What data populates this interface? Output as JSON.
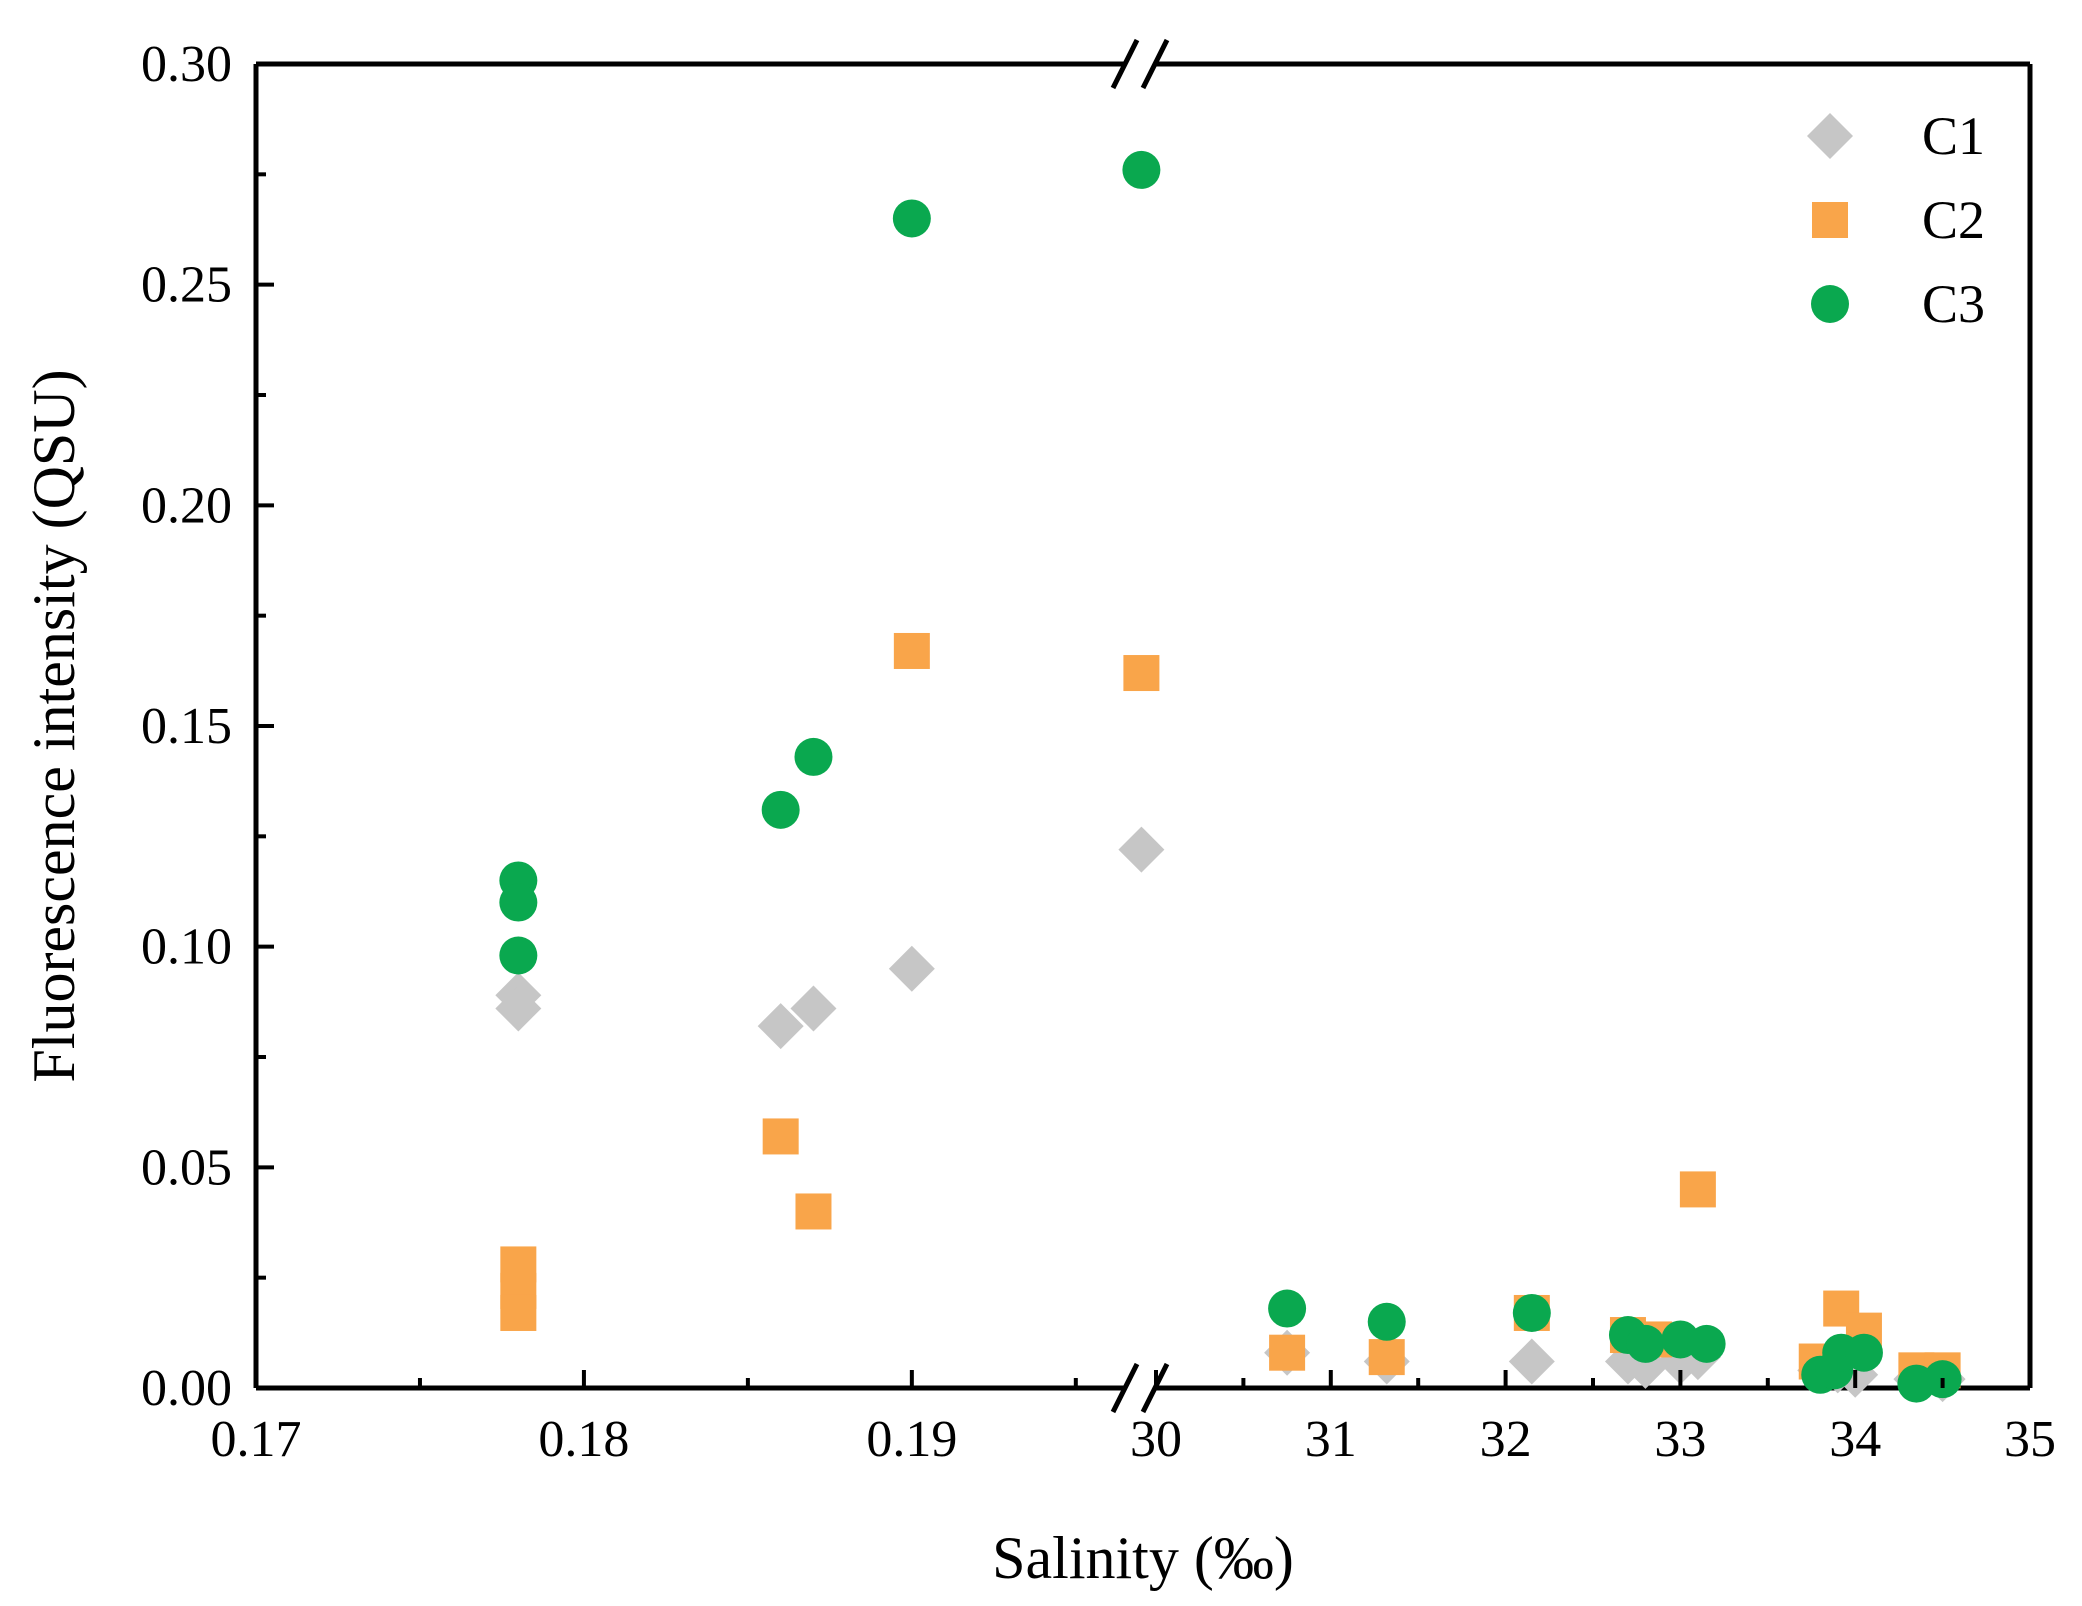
{
  "chart_data": {
    "type": "scatter",
    "title": "",
    "xlabel": "Salinity (‰)",
    "ylabel": "Fluorescence intensity (QSU)",
    "ylim": [
      0,
      0.3
    ],
    "yticks": [
      "0.00",
      "0.05",
      "0.10",
      "0.15",
      "0.20",
      "0.25",
      "0.30"
    ],
    "x_broken_axis": true,
    "x_segments": [
      {
        "xlim": [
          0.17,
          0.1965
        ],
        "ticks": [
          "0.17",
          "0.18",
          "0.19"
        ],
        "tick_values": [
          0.17,
          0.18,
          0.19
        ]
      },
      {
        "xlim": [
          30,
          35
        ],
        "ticks": [
          "30",
          "31",
          "32",
          "33",
          "34",
          "35"
        ],
        "tick_values": [
          30,
          31,
          32,
          33,
          34,
          35
        ]
      }
    ],
    "legend_position": "top-right",
    "series": [
      {
        "name": "C1",
        "marker": "diamond",
        "color": "#c6c6c6",
        "points": [
          [
            0.178,
            0.089
          ],
          [
            0.178,
            0.086
          ],
          [
            0.186,
            0.082
          ],
          [
            0.187,
            0.086
          ],
          [
            0.19,
            0.095
          ],
          [
            0.197,
            0.122
          ],
          [
            30.75,
            0.008
          ],
          [
            31.32,
            0.006
          ],
          [
            32.15,
            0.006
          ],
          [
            32.7,
            0.006
          ],
          [
            32.8,
            0.005
          ],
          [
            33.0,
            0.006
          ],
          [
            33.1,
            0.007
          ],
          [
            33.8,
            0.004
          ],
          [
            33.9,
            0.004
          ],
          [
            34.0,
            0.003
          ],
          [
            34.35,
            0.002
          ],
          [
            34.5,
            0.002
          ]
        ]
      },
      {
        "name": "C2",
        "marker": "square",
        "color": "#f9a54a",
        "points": [
          [
            0.178,
            0.028
          ],
          [
            0.178,
            0.022
          ],
          [
            0.178,
            0.017
          ],
          [
            0.186,
            0.057
          ],
          [
            0.187,
            0.04
          ],
          [
            0.19,
            0.167
          ],
          [
            0.197,
            0.162
          ],
          [
            30.75,
            0.008
          ],
          [
            31.32,
            0.007
          ],
          [
            32.15,
            0.017
          ],
          [
            32.7,
            0.012
          ],
          [
            32.85,
            0.011
          ],
          [
            33.1,
            0.045
          ],
          [
            33.78,
            0.006
          ],
          [
            33.92,
            0.018
          ],
          [
            34.05,
            0.013
          ],
          [
            34.35,
            0.004
          ],
          [
            34.5,
            0.004
          ]
        ]
      },
      {
        "name": "C3",
        "marker": "circle",
        "color": "#0aa84f",
        "points": [
          [
            0.178,
            0.115
          ],
          [
            0.178,
            0.11
          ],
          [
            0.178,
            0.098
          ],
          [
            0.186,
            0.131
          ],
          [
            0.187,
            0.143
          ],
          [
            0.19,
            0.265
          ],
          [
            0.197,
            0.276
          ],
          [
            30.75,
            0.018
          ],
          [
            31.32,
            0.015
          ],
          [
            32.15,
            0.017
          ],
          [
            32.7,
            0.012
          ],
          [
            32.8,
            0.01
          ],
          [
            33.0,
            0.011
          ],
          [
            33.15,
            0.01
          ],
          [
            33.8,
            0.003
          ],
          [
            33.88,
            0.004
          ],
          [
            33.92,
            0.008
          ],
          [
            34.05,
            0.008
          ],
          [
            34.35,
            0.001
          ],
          [
            34.5,
            0.002
          ]
        ]
      }
    ]
  }
}
